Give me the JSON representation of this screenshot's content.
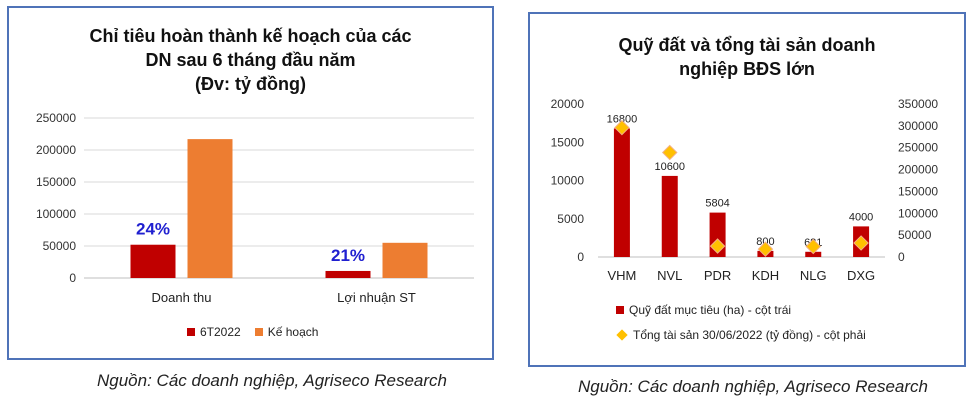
{
  "chart_data": [
    {
      "type": "bar",
      "title": "Chỉ tiêu hoàn thành kế hoạch của các\nDN sau 6 tháng đầu năm\n(Đv: tỷ đồng)",
      "categories": [
        "Doanh thu",
        "Lợi nhuận ST"
      ],
      "series": [
        {
          "name": "6T2022",
          "values": [
            52000,
            11000
          ],
          "color": "#c00000"
        },
        {
          "name": "Kế hoạch",
          "values": [
            217000,
            55000
          ],
          "color": "#ed7d31"
        }
      ],
      "annotations": [
        "24%",
        "21%"
      ],
      "yticks": [
        "0",
        "50000",
        "100000",
        "150000",
        "200000",
        "250000"
      ],
      "ylim": [
        0,
        250000
      ],
      "grid": true,
      "legend": "bottom"
    },
    {
      "type": "bar",
      "title": "Quỹ đất và tổng tài sản doanh\nnghiệp BĐS lớn",
      "categories": [
        "VHM",
        "NVL",
        "PDR",
        "KDH",
        "NLG",
        "DXG"
      ],
      "series": [
        {
          "name": "Quỹ đất mục tiêu (ha) - cột trái",
          "values": [
            16800,
            10600,
            5804,
            800,
            681,
            4000
          ],
          "labels": [
            "16800",
            "10600",
            "5804",
            "800",
            "681",
            "4000"
          ],
          "color": "#c00000",
          "axis": "left"
        },
        {
          "name": "Tổng tài sản 30/06/2022 (tỷ đồng) - cột phải",
          "values": [
            296000,
            239000,
            25000,
            18000,
            24000,
            32000
          ],
          "color": "#ffc000",
          "axis": "right",
          "marker": "diamond"
        }
      ],
      "yticks_left": [
        "0",
        "5000",
        "10000",
        "15000",
        "20000"
      ],
      "ylim_left": [
        0,
        20000
      ],
      "yticks_right": [
        "0",
        "50000",
        "100000",
        "150000",
        "200000",
        "250000",
        "300000",
        "350000"
      ],
      "ylim_right": [
        0,
        350000
      ],
      "grid": false,
      "legend": "bottom"
    }
  ],
  "sources": [
    "Nguồn: Các doanh nghiệp, Agriseco Research",
    "Nguồn: Các doanh nghiệp, Agriseco Research"
  ]
}
